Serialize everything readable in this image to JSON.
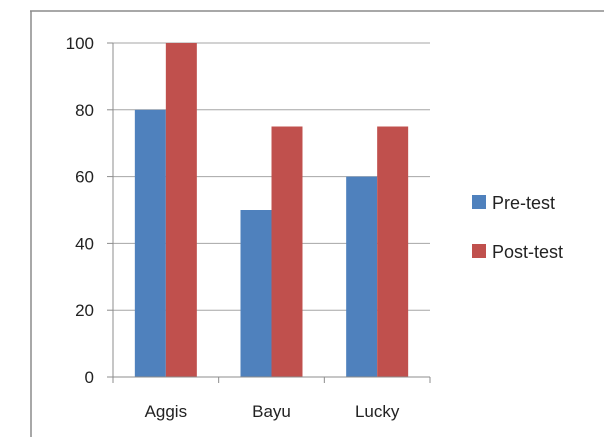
{
  "chart_data": {
    "type": "bar",
    "title": "",
    "xlabel": "",
    "ylabel": "",
    "categories": [
      "Aggis",
      "Bayu",
      "Lucky"
    ],
    "series": [
      {
        "name": "Pre-test",
        "values": [
          80,
          50,
          60
        ],
        "color": "#4f81bd"
      },
      {
        "name": "Post-test",
        "values": [
          100,
          75,
          75
        ],
        "color": "#c0504d"
      }
    ],
    "ylim": [
      0,
      100
    ],
    "yticks": [
      "0",
      "20",
      "40",
      "60",
      "80",
      "100"
    ],
    "grid": true,
    "legend_position": "right"
  }
}
